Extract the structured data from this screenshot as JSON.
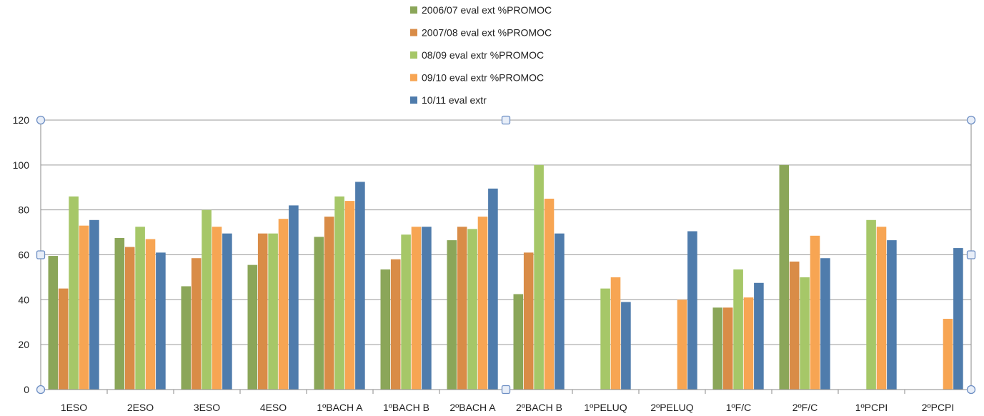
{
  "chart_data": {
    "type": "bar",
    "title": "",
    "xlabel": "",
    "ylabel": "",
    "ylim": [
      0,
      120
    ],
    "yticks": [
      0,
      20,
      40,
      60,
      80,
      100,
      120
    ],
    "grid": true,
    "legend_position": "top-center",
    "categories": [
      "1ESO",
      "2ESO",
      "3ESO",
      "4ESO",
      "1ºBACH A",
      "1ºBACH B",
      "2ºBACH A",
      "2ºBACH B",
      "1ºPELUQ",
      "2ºPELUQ",
      "1ºF/C",
      "2ºF/C",
      "1ºPCPI",
      "2ºPCPI"
    ],
    "series": [
      {
        "name": "2006/07 eval ext %PROMOC",
        "color": "#8ba659",
        "values": [
          59.5,
          67.5,
          46,
          55.5,
          68,
          53.5,
          66.5,
          42.5,
          null,
          null,
          36.5,
          100,
          null,
          null
        ]
      },
      {
        "name": "2007/08 eval ext %PROMOC",
        "color": "#d98c47",
        "values": [
          45,
          63.5,
          58.5,
          69.5,
          77,
          58,
          72.5,
          61,
          null,
          null,
          36.5,
          57,
          null,
          null
        ]
      },
      {
        "name": "08/09 eval extr %PROMOC",
        "color": "#a6c768",
        "values": [
          86,
          72.5,
          80,
          69.5,
          86,
          69,
          71.5,
          100,
          45,
          null,
          53.5,
          50,
          75.5,
          null
        ]
      },
      {
        "name": "09/10 eval extr %PROMOC",
        "color": "#f7a553",
        "values": [
          73,
          67,
          72.5,
          76,
          84,
          72.5,
          77,
          85,
          50,
          40,
          41,
          68.5,
          72.5,
          31.5
        ]
      },
      {
        "name": "10/11 eval extr",
        "color": "#4f7cac",
        "values": [
          75.5,
          61,
          69.5,
          82,
          92.5,
          72.5,
          89.5,
          69.5,
          39,
          70.5,
          47.5,
          58.5,
          66.5,
          63
        ]
      }
    ]
  }
}
